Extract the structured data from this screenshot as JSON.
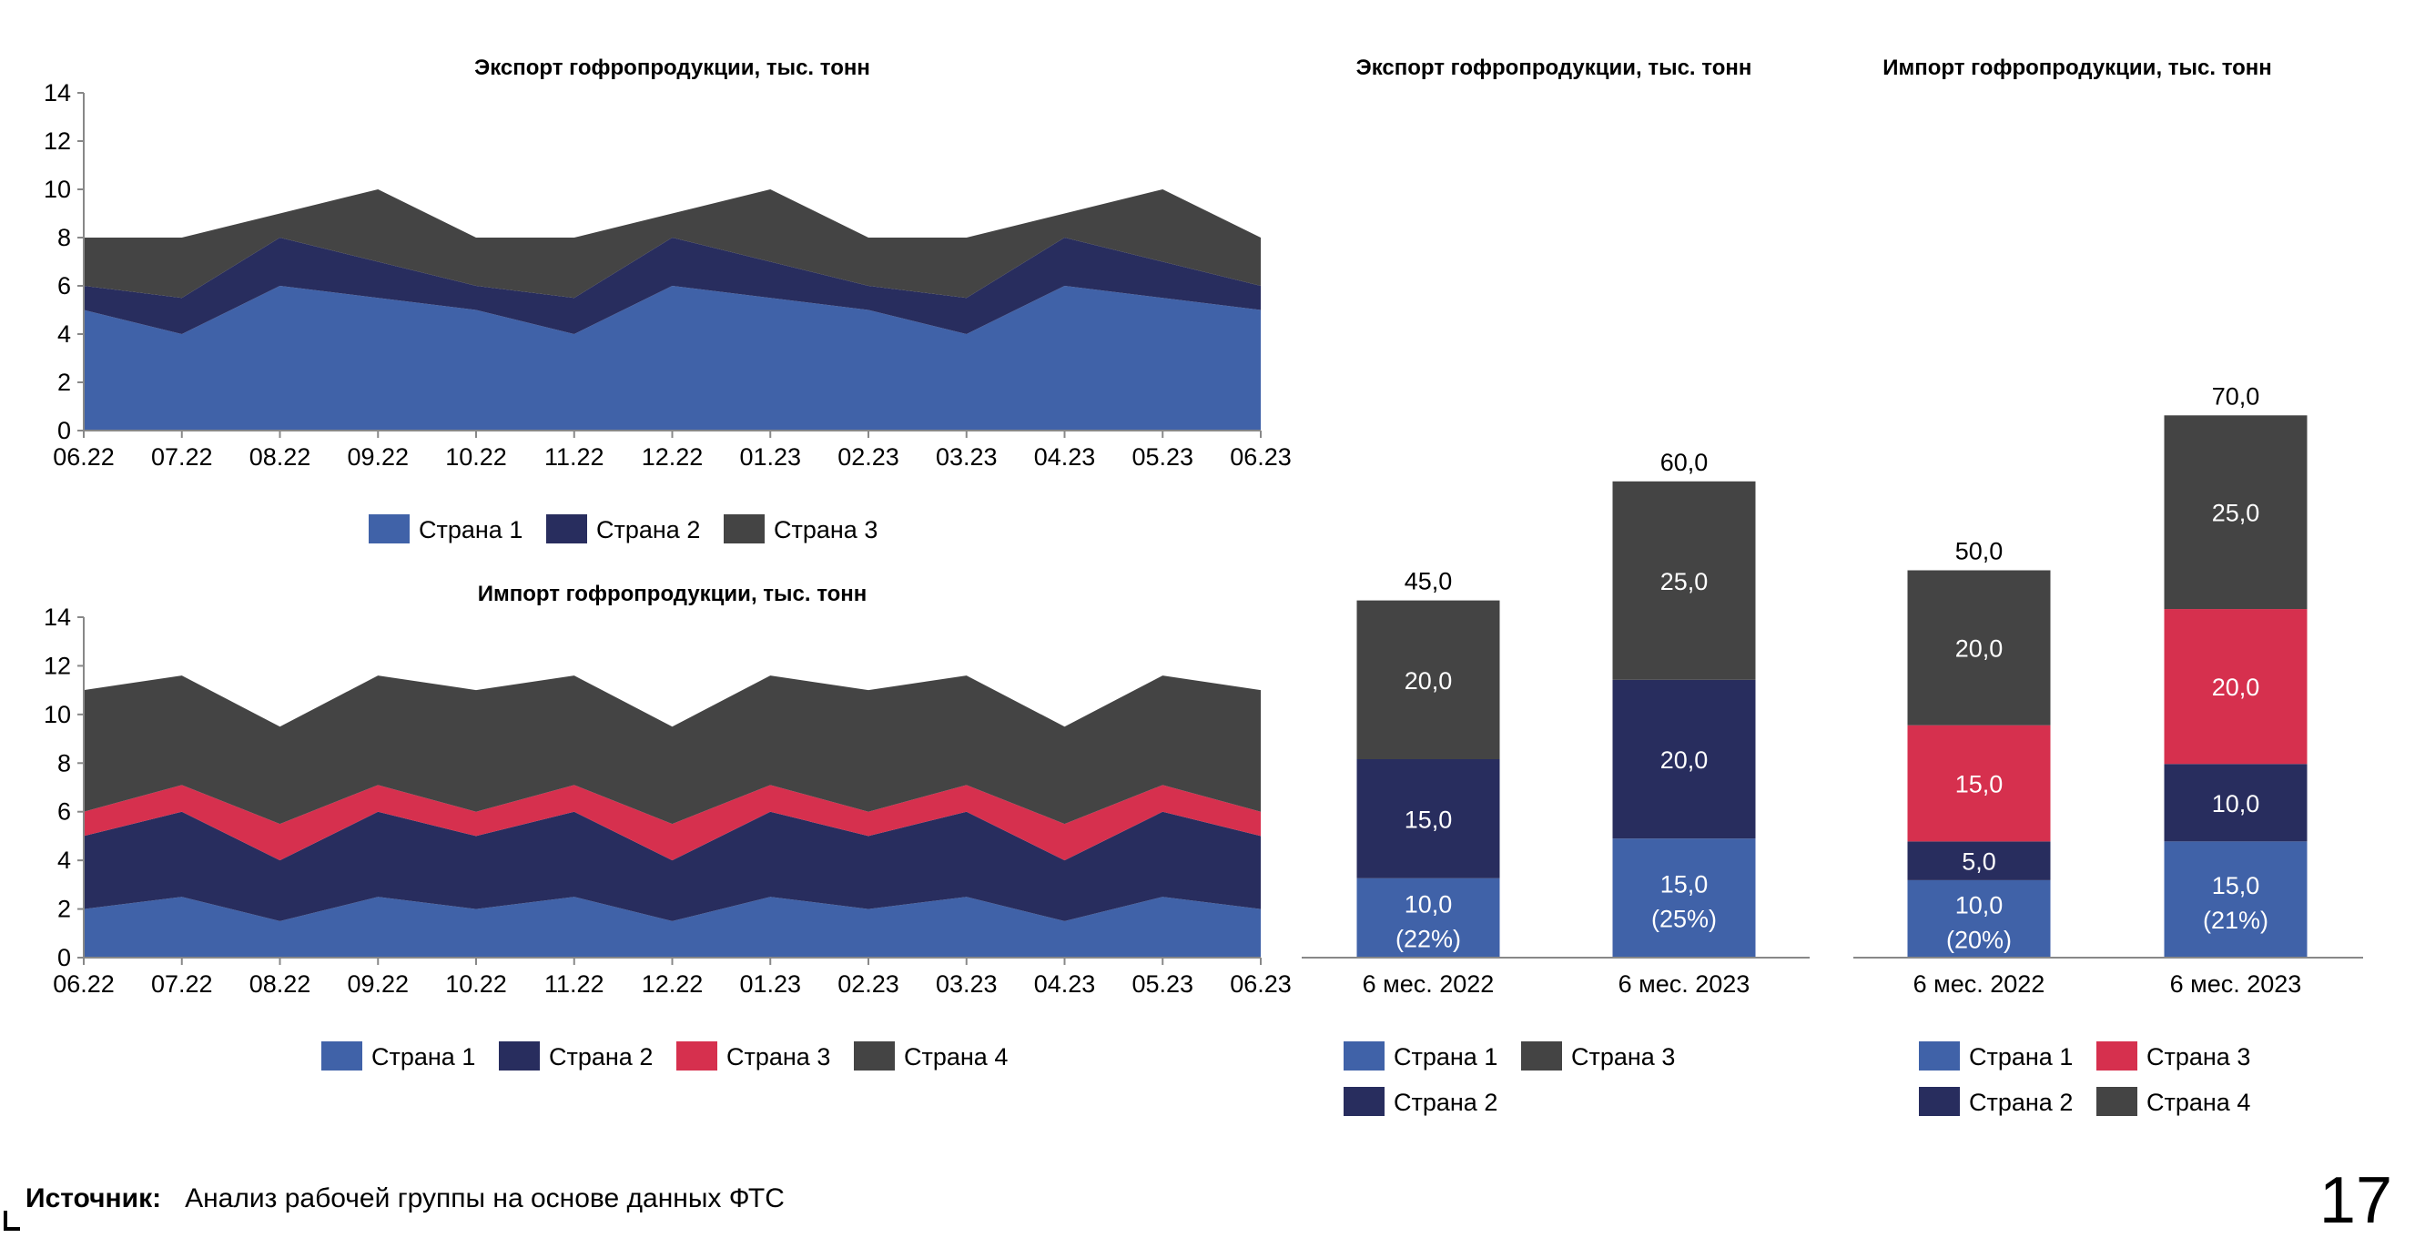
{
  "chart_data": [
    {
      "type": "area",
      "stacked": true,
      "title": "Экспорт гофропродукции, тыс. тонн",
      "categories": [
        "06.22",
        "07.22",
        "08.22",
        "09.22",
        "10.22",
        "11.22",
        "12.22",
        "01.23",
        "02.23",
        "03.23",
        "04.23",
        "05.23",
        "06.23"
      ],
      "ylim": [
        0,
        14
      ],
      "yticks": [
        0,
        2,
        4,
        6,
        8,
        10,
        12,
        14
      ],
      "grid": false,
      "legend": "bottom",
      "series": [
        {
          "name": "Страна 1",
          "color": "#4062a8",
          "values": [
            5,
            4,
            6,
            5.5,
            5,
            4,
            6,
            5.5,
            5,
            4,
            6,
            5.5,
            5
          ]
        },
        {
          "name": "Страна 2",
          "color": "#282d5e",
          "values": [
            1,
            1.5,
            2,
            1.5,
            1,
            1.5,
            2,
            1.5,
            1,
            1.5,
            2,
            1.5,
            1
          ]
        },
        {
          "name": "Страна 3",
          "color": "#444444",
          "values": [
            2,
            2.5,
            1,
            3,
            2,
            2.5,
            1,
            3,
            2,
            2.5,
            1,
            3,
            2
          ]
        }
      ]
    },
    {
      "type": "area",
      "stacked": true,
      "title": "Импорт гофропродукции, тыс. тонн",
      "categories": [
        "06.22",
        "07.22",
        "08.22",
        "09.22",
        "10.22",
        "11.22",
        "12.22",
        "01.23",
        "02.23",
        "03.23",
        "04.23",
        "05.23",
        "06.23"
      ],
      "ylim": [
        0,
        14
      ],
      "yticks": [
        0,
        2,
        4,
        6,
        8,
        10,
        12,
        14
      ],
      "grid": false,
      "legend": "bottom",
      "series": [
        {
          "name": "Страна 1",
          "color": "#4062a8",
          "values": [
            2,
            2.5,
            1.5,
            2.5,
            2,
            2.5,
            1.5,
            2.5,
            2,
            2.5,
            1.5,
            2.5,
            2
          ]
        },
        {
          "name": "Страна 2",
          "color": "#282d5e",
          "values": [
            3,
            3.5,
            2.5,
            3.5,
            3,
            3.5,
            2.5,
            3.5,
            3,
            3.5,
            2.5,
            3.5,
            3
          ]
        },
        {
          "name": "Страна 3",
          "color": "#d6304e",
          "values": [
            1,
            1.1,
            1.5,
            1.1,
            1,
            1.1,
            1.5,
            1.1,
            1,
            1.1,
            1.5,
            1.1,
            1
          ]
        },
        {
          "name": "Страна 4",
          "color": "#444444",
          "values": [
            5,
            4.5,
            4,
            4.5,
            5,
            4.5,
            4,
            4.5,
            5,
            4.5,
            4,
            4.5,
            5
          ]
        }
      ]
    },
    {
      "type": "bar",
      "stacked": true,
      "title": "Экспорт гофропродукции, тыс. тонн",
      "categories": [
        "6 мес. 2022",
        "6 мес. 2023"
      ],
      "totals": [
        "45,0",
        "60,0"
      ],
      "total_values": [
        45,
        60
      ],
      "legend": "bottom",
      "series": [
        {
          "name": "Страна 1",
          "color": "#4062a8",
          "values": [
            10,
            15
          ],
          "labels": [
            "10,0",
            "15,0"
          ],
          "shares": [
            "(22%)",
            "(25%)"
          ]
        },
        {
          "name": "Страна 2",
          "color": "#282d5e",
          "values": [
            15,
            20
          ],
          "labels": [
            "15,0",
            "20,0"
          ]
        },
        {
          "name": "Страна 3",
          "color": "#444444",
          "values": [
            20,
            25
          ],
          "labels": [
            "20,0",
            "25,0"
          ]
        }
      ]
    },
    {
      "type": "bar",
      "stacked": true,
      "title": "Импорт гофропродукции, тыс. тонн",
      "categories": [
        "6 мес. 2022",
        "6 мес. 2023"
      ],
      "totals": [
        "50,0",
        "70,0"
      ],
      "total_values": [
        50,
        70
      ],
      "legend": "bottom",
      "series": [
        {
          "name": "Страна 1",
          "color": "#4062a8",
          "values": [
            10,
            15
          ],
          "labels": [
            "10,0",
            "15,0"
          ],
          "shares": [
            "(20%)",
            "(21%)"
          ]
        },
        {
          "name": "Страна 2",
          "color": "#282d5e",
          "values": [
            5,
            10
          ],
          "labels": [
            "5,0",
            "10,0"
          ]
        },
        {
          "name": "Страна 3",
          "color": "#d6304e",
          "values": [
            15,
            20
          ],
          "labels": [
            "15,0",
            "20,0"
          ]
        },
        {
          "name": "Страна 4",
          "color": "#444444",
          "values": [
            20,
            25
          ],
          "labels": [
            "20,0",
            "25,0"
          ]
        }
      ]
    }
  ],
  "footer": {
    "source_label": "Источник:",
    "source_text": "Анализ рабочей группы на основе данных ФТС"
  },
  "page_number": "17"
}
